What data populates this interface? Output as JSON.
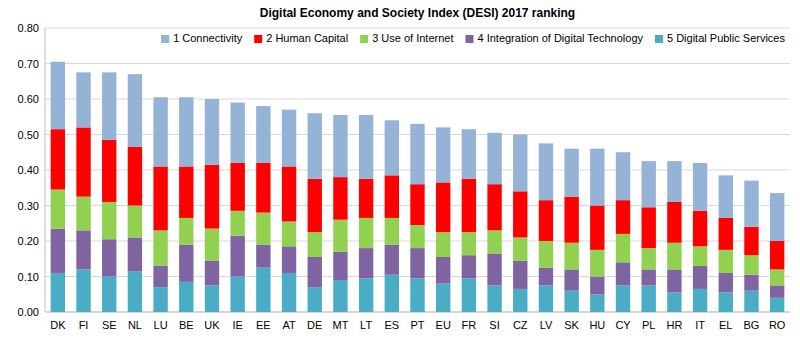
{
  "chart_data": {
    "type": "bar",
    "title": "Digital Economy and Society Index (DESI) 2017 ranking",
    "categories": [
      "DK",
      "FI",
      "SE",
      "NL",
      "LU",
      "BE",
      "UK",
      "IE",
      "EE",
      "AT",
      "DE",
      "MT",
      "LT",
      "ES",
      "PT",
      "EU",
      "FR",
      "SI",
      "CZ",
      "LV",
      "SK",
      "HU",
      "CY",
      "PL",
      "HR",
      "IT",
      "EL",
      "BG",
      "RO"
    ],
    "series": [
      {
        "name": "1 Connectivity",
        "color": "#95B3D7",
        "values": [
          0.19,
          0.155,
          0.19,
          0.205,
          0.195,
          0.195,
          0.185,
          0.17,
          0.16,
          0.16,
          0.185,
          0.175,
          0.18,
          0.155,
          0.17,
          0.155,
          0.14,
          0.145,
          0.16,
          0.16,
          0.135,
          0.16,
          0.135,
          0.13,
          0.115,
          0.135,
          0.12,
          0.13,
          0.135
        ]
      },
      {
        "name": "2 Human Capital",
        "color": "#FF0000",
        "values": [
          0.17,
          0.195,
          0.175,
          0.165,
          0.18,
          0.145,
          0.18,
          0.135,
          0.14,
          0.155,
          0.15,
          0.12,
          0.11,
          0.12,
          0.115,
          0.14,
          0.15,
          0.13,
          0.13,
          0.115,
          0.13,
          0.125,
          0.095,
          0.115,
          0.115,
          0.1,
          0.09,
          0.08,
          0.08
        ]
      },
      {
        "name": "3 Use of Internet",
        "color": "#92D050",
        "values": [
          0.11,
          0.095,
          0.105,
          0.09,
          0.1,
          0.075,
          0.09,
          0.07,
          0.09,
          0.07,
          0.07,
          0.09,
          0.085,
          0.075,
          0.065,
          0.07,
          0.065,
          0.065,
          0.065,
          0.075,
          0.075,
          0.075,
          0.08,
          0.06,
          0.075,
          0.055,
          0.065,
          0.055,
          0.045
        ]
      },
      {
        "name": "4 Integration of Digital Technology",
        "color": "#8064A2",
        "values": [
          0.125,
          0.11,
          0.105,
          0.095,
          0.06,
          0.105,
          0.07,
          0.115,
          0.065,
          0.075,
          0.085,
          0.08,
          0.085,
          0.085,
          0.085,
          0.075,
          0.065,
          0.09,
          0.08,
          0.05,
          0.06,
          0.05,
          0.065,
          0.045,
          0.065,
          0.065,
          0.055,
          0.045,
          0.035
        ]
      },
      {
        "name": "5 Digital Public Services",
        "color": "#4BACC6",
        "values": [
          0.11,
          0.12,
          0.1,
          0.115,
          0.07,
          0.085,
          0.075,
          0.1,
          0.125,
          0.11,
          0.07,
          0.09,
          0.095,
          0.105,
          0.095,
          0.08,
          0.095,
          0.075,
          0.065,
          0.075,
          0.06,
          0.05,
          0.075,
          0.075,
          0.055,
          0.065,
          0.055,
          0.06,
          0.04
        ]
      }
    ],
    "ylim": [
      0,
      0.8
    ],
    "yticks": [
      {
        "value": 0,
        "label": "0.00"
      },
      {
        "value": 0.1,
        "label": "0.10"
      },
      {
        "value": 0.2,
        "label": "0.20"
      },
      {
        "value": 0.3,
        "label": "0.30"
      },
      {
        "value": 0.4,
        "label": "0.40"
      },
      {
        "value": 0.5,
        "label": "0.50"
      },
      {
        "value": 0.6,
        "label": "0.60"
      },
      {
        "value": 0.7,
        "label": "0.70"
      },
      {
        "value": 0.8,
        "label": "0.80"
      }
    ],
    "stacked": true,
    "grid": true,
    "legend": "top"
  }
}
